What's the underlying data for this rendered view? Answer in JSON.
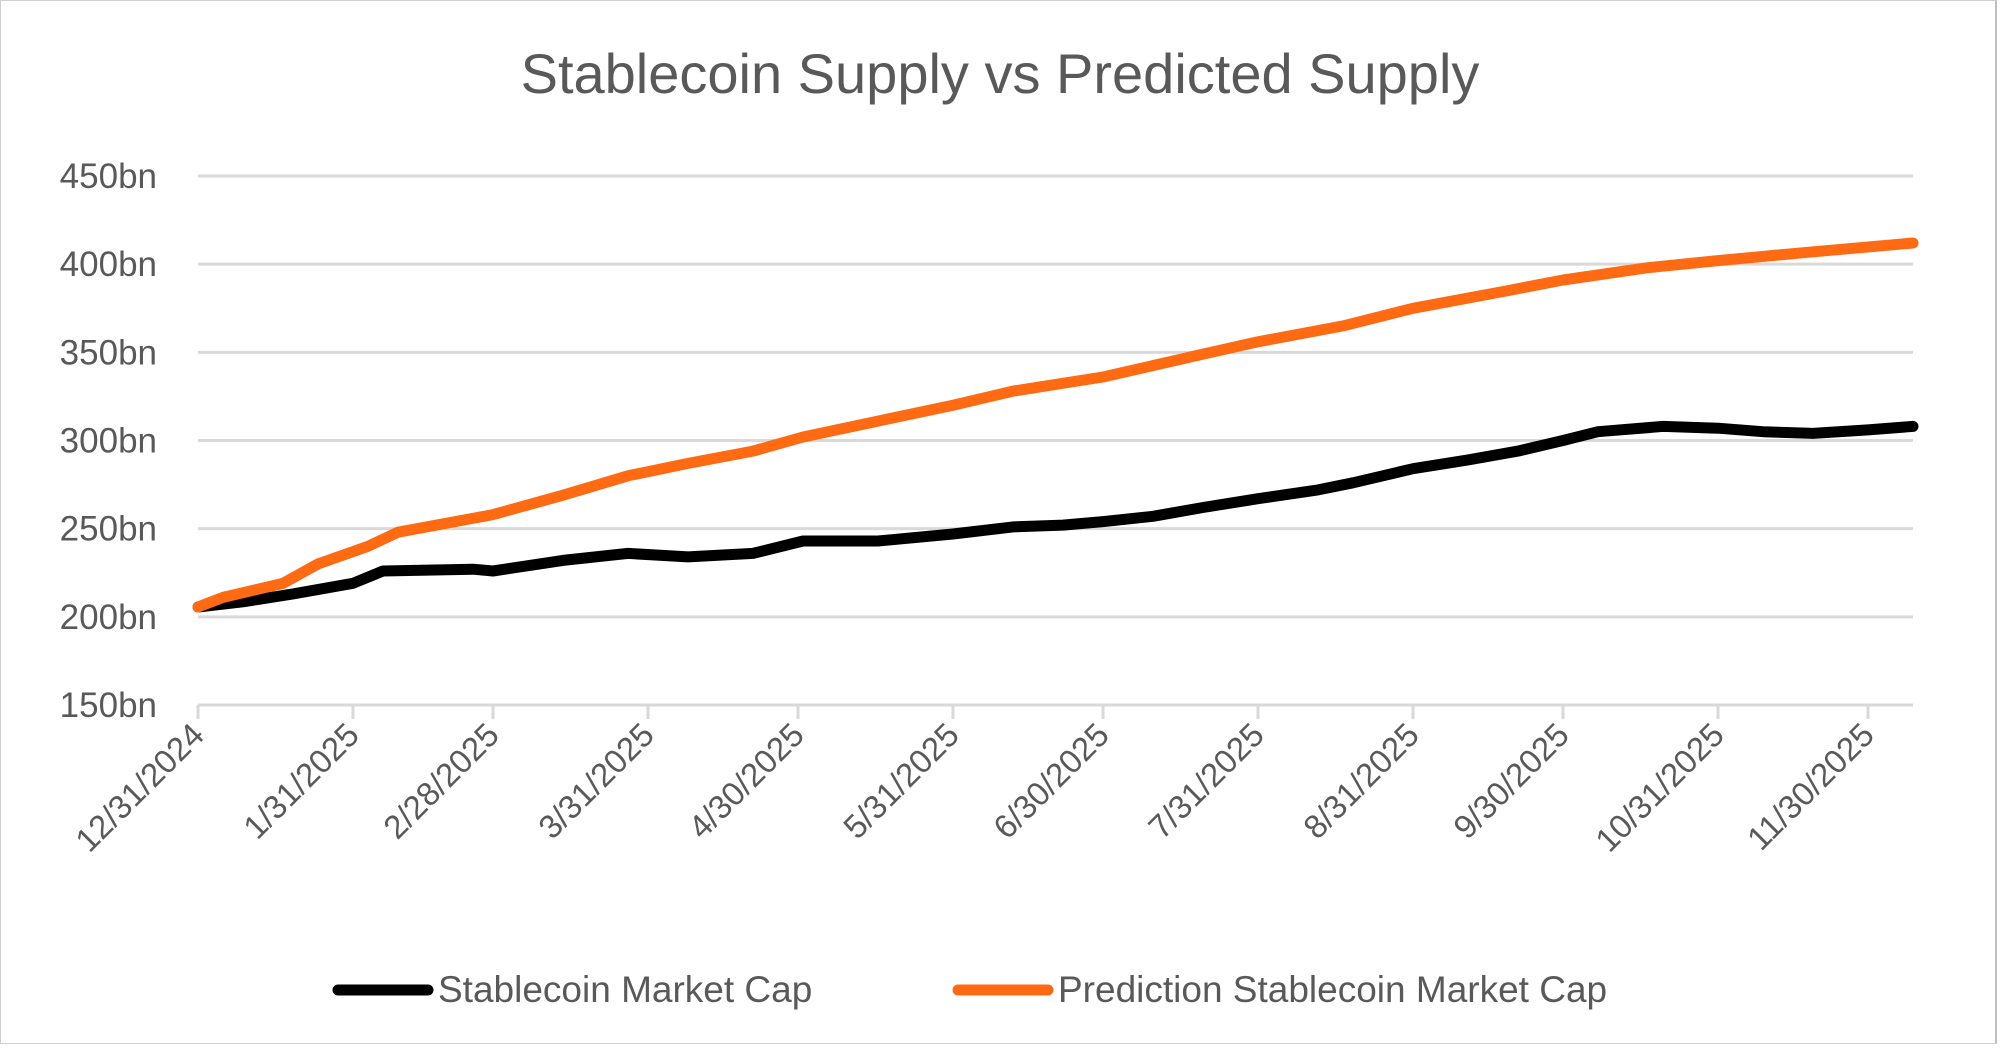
{
  "chart_data": {
    "type": "line",
    "title": "Stablecoin Supply vs Predicted Supply",
    "xlabel": "",
    "ylabel": "",
    "x_unit": "days since 12/31/2024",
    "xlim": [
      0,
      343
    ],
    "ylim": [
      150,
      450
    ],
    "y_ticks": [
      150,
      200,
      250,
      300,
      350,
      400,
      450
    ],
    "y_tick_labels": [
      "150bn",
      "200bn",
      "250bn",
      "300bn",
      "350bn",
      "400bn",
      "450bn"
    ],
    "x_ticks": [
      0,
      31,
      59,
      90,
      120,
      151,
      181,
      212,
      243,
      273,
      304,
      334
    ],
    "x_tick_labels": [
      "12/31/2024",
      "1/31/2025",
      "2/28/2025",
      "3/31/2025",
      "4/30/2025",
      "5/31/2025",
      "6/30/2025",
      "7/31/2025",
      "8/31/2025",
      "9/30/2025",
      "10/31/2025",
      "11/30/2025"
    ],
    "grid": true,
    "legend_position": "bottom",
    "series": [
      {
        "name": "Stablecoin Market Cap",
        "color": "#000000",
        "x": [
          0,
          9,
          19,
          31,
          37,
          55,
          59,
          73,
          86,
          98,
          111,
          121,
          136,
          151,
          163,
          173,
          181,
          191,
          201,
          212,
          224,
          231,
          243,
          254,
          264,
          273,
          280,
          293,
          304,
          313,
          323,
          334,
          343
        ],
        "values": [
          205.6,
          208.5,
          213,
          219,
          226,
          227,
          226,
          232,
          236,
          234,
          236,
          243,
          243,
          247,
          251,
          252,
          254,
          257,
          262,
          267,
          272,
          276,
          284,
          289,
          294,
          300,
          305,
          308,
          307,
          305,
          304,
          306,
          308
        ]
      },
      {
        "name": "Prediction Stablecoin Market Cap",
        "color": "#FF6A13",
        "x": [
          0,
          5,
          17,
          24,
          34,
          40,
          59,
          73,
          86,
          98,
          111,
          121,
          136,
          151,
          163,
          181,
          201,
          212,
          229,
          243,
          262,
          273,
          290,
          304,
          323,
          343
        ],
        "values": [
          205.6,
          211,
          219,
          230,
          240,
          248,
          258,
          269,
          280,
          287,
          294,
          302,
          311,
          320,
          328,
          336,
          349,
          356,
          365,
          375,
          385,
          391,
          398,
          402,
          407,
          412
        ]
      }
    ]
  }
}
